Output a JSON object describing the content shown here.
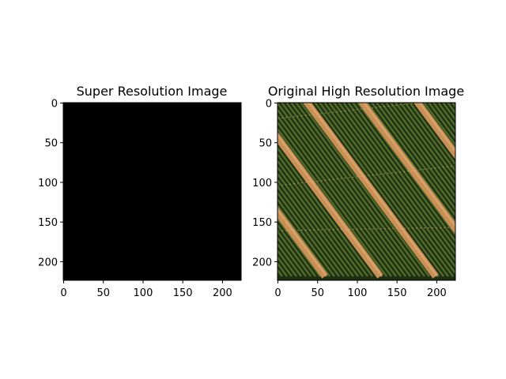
{
  "chart_data": [
    {
      "type": "heatmap",
      "title": "Super Resolution Image",
      "xlabel": "",
      "ylabel": "",
      "xlim": [
        0,
        224
      ],
      "ylim": [
        224,
        0
      ],
      "xticks": [
        0,
        50,
        100,
        150,
        200
      ],
      "yticks": [
        0,
        50,
        100,
        150,
        200
      ],
      "image_fill": "#000000",
      "image_content": "uniform black"
    },
    {
      "type": "heatmap",
      "title": "Original High Resolution Image",
      "xlabel": "",
      "ylabel": "",
      "xlim": [
        0,
        224
      ],
      "ylim": [
        224,
        0
      ],
      "xticks": [
        0,
        50,
        100,
        150,
        200
      ],
      "yticks": [
        0,
        50,
        100,
        150,
        200
      ],
      "image_content": "aerial photo of diagonal crop rows with tan dirt tracks",
      "colors": {
        "base": "#1f2e12",
        "crop_row": "#4e6b2a",
        "track": "#c98f55",
        "track_highlight": "#e2b07a"
      }
    }
  ]
}
